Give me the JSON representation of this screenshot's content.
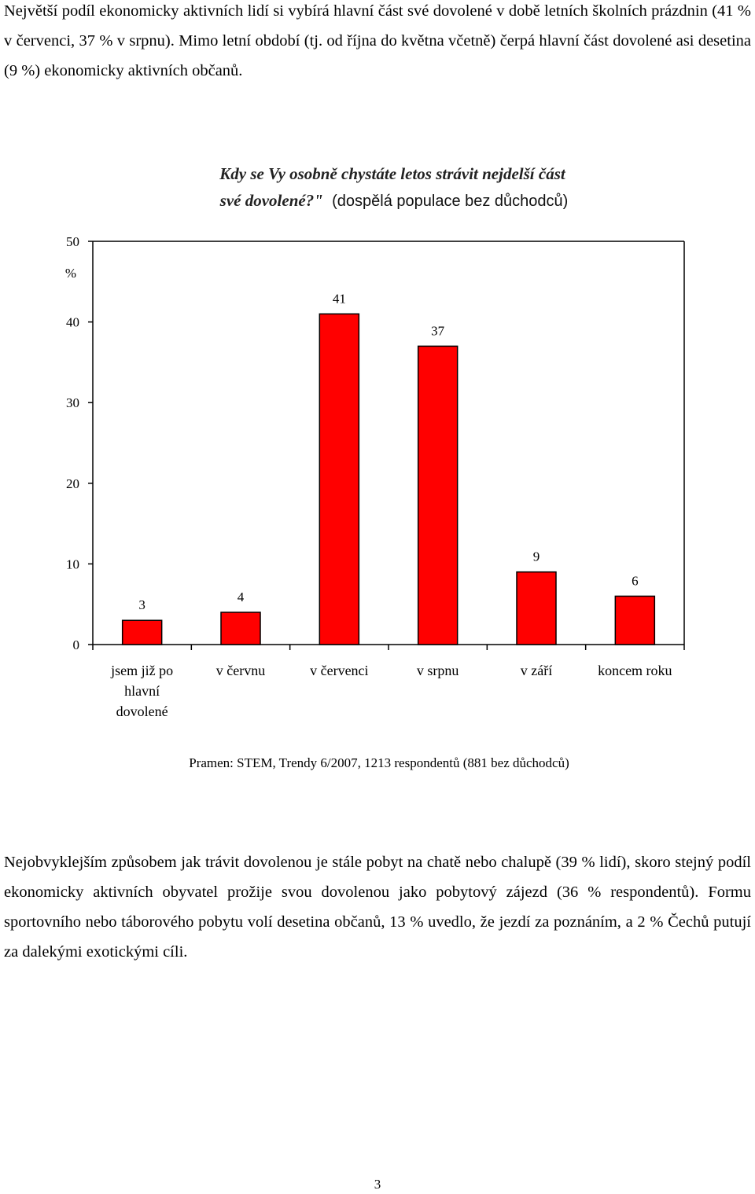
{
  "intro_paragraph": "Největší podíl ekonomicky aktivních lidí si vybírá hlavní část své dovolené v době letních školních prázdnin (41 % v červenci, 37 % v srpnu). Mimo letní období (tj. od října do května včetně) čerpá hlavní část dovolené asi desetina (9 %) ekonomicky aktivních občanů.",
  "chart_data": {
    "type": "bar",
    "title_line1": "Kdy se Vy osobně chystáte letos strávit nejdelší část",
    "title_line2_italic": "své dovolené?\"",
    "title_line2_normal": "(dospělá populace bez důchodců)",
    "ylabel": "%",
    "ylim": [
      0,
      50
    ],
    "yticks": [
      "0",
      "10",
      "20",
      "30",
      "40",
      "50"
    ],
    "categories": [
      [
        "jsem již po",
        "hlavní",
        "dovolené"
      ],
      [
        "v červnu"
      ],
      [
        "v červenci"
      ],
      [
        "v srpnu"
      ],
      [
        "v září"
      ],
      [
        "koncem roku"
      ]
    ],
    "values": [
      3,
      4,
      41,
      37,
      9,
      6
    ],
    "bar_color": "#ff0000",
    "grid": false,
    "source": "Pramen: STEM, Trendy 6/2007, 1213 respondentů (881 bez důchodců)"
  },
  "body_paragraph": "Nejobvyklejším způsobem jak trávit dovolenou je stále pobyt na chatě nebo chalupě (39 % lidí), skoro stejný podíl ekonomicky aktivních obyvatel prožije svou dovolenou jako pobytový zájezd (36 % respondentů). Formu sportovního nebo táborového pobytu volí desetina občanů, 13 % uvedlo, že jezdí za poznáním, a 2 % Čechů putují za dalekými exotickými cíli.",
  "page_number": "3"
}
